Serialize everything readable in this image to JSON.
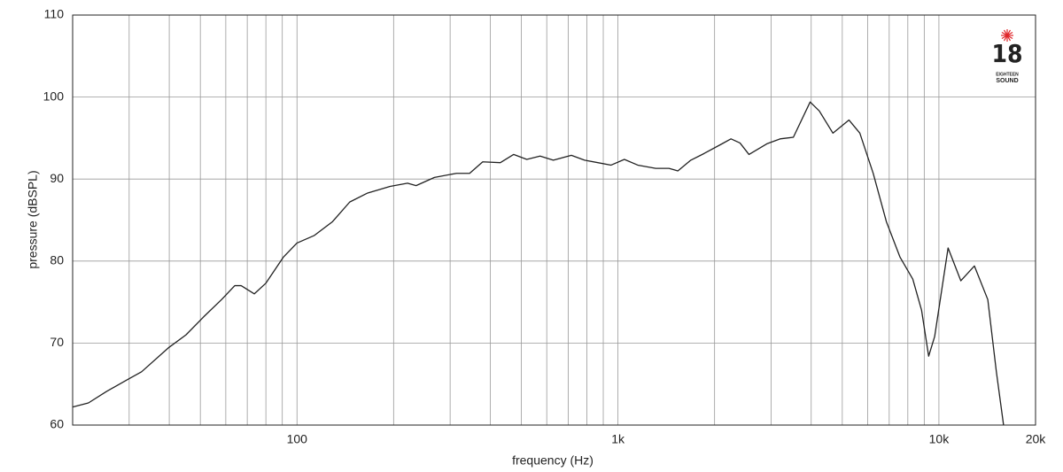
{
  "chart_data": {
    "type": "line",
    "x_label": "frequency (Hz)",
    "y_label": "pressure (dBSPL)",
    "x_scale": "log",
    "grid": true,
    "xlim": [
      20,
      20000
    ],
    "ylim": [
      60,
      110
    ],
    "yticks": [
      60,
      70,
      80,
      90,
      100,
      110
    ],
    "xticks": [
      100,
      {
        "value": 1000,
        "label": "1k"
      },
      {
        "value": 10000,
        "label": "10k"
      },
      {
        "value": 20000,
        "label": "20k"
      }
    ],
    "xgrid": [
      30,
      40,
      50,
      60,
      70,
      80,
      90,
      100,
      200,
      300,
      400,
      500,
      600,
      700,
      800,
      900,
      1000,
      2000,
      3000,
      4000,
      5000,
      6000,
      7000,
      8000,
      9000,
      10000
    ],
    "logo": {
      "number": "18",
      "line1": "EIGHTEEN",
      "line2": "SOUND",
      "star_color": "#e0262a"
    },
    "series": [
      {
        "color": "#222222",
        "x": [
          20,
          22.4,
          25.5,
          29.8,
          32.8,
          39.7,
          45.1,
          51.2,
          58.2,
          64,
          67,
          73.6,
          80,
          90.8,
          100,
          113,
          129,
          146,
          166,
          195,
          221,
          235,
          268,
          314,
          345,
          379,
          430,
          473,
          520,
          572,
          629,
          716,
          787,
          866,
          952,
          1047,
          1153,
          1311,
          1442,
          1537,
          1686,
          1852,
          2110,
          2250,
          2400,
          2560,
          2910,
          3200,
          3520,
          3970,
          4240,
          4674,
          5246,
          5670,
          6240,
          6860,
          7560,
          8290,
          8830,
          9290,
          9700,
          10680,
          11700,
          12900,
          14200,
          15100,
          15900
        ],
        "values": [
          62.2,
          62.7,
          64.1,
          65.6,
          66.5,
          69.4,
          71.0,
          73.2,
          75.3,
          77.0,
          77.0,
          76.0,
          77.3,
          80.5,
          82.2,
          83.1,
          84.8,
          87.2,
          88.3,
          89.1,
          89.5,
          89.2,
          90.2,
          90.7,
          90.7,
          92.1,
          92.0,
          93.0,
          92.4,
          92.8,
          92.3,
          92.9,
          92.3,
          92.0,
          91.7,
          92.4,
          91.7,
          91.3,
          91.3,
          91.0,
          92.3,
          93.1,
          94.3,
          94.9,
          94.4,
          93.0,
          94.3,
          94.9,
          95.1,
          99.4,
          98.3,
          95.6,
          97.2,
          95.6,
          90.7,
          84.8,
          80.5,
          77.8,
          74.0,
          68.4,
          70.8,
          81.6,
          77.6,
          79.4,
          75.3,
          66.5,
          60
        ]
      }
    ]
  }
}
